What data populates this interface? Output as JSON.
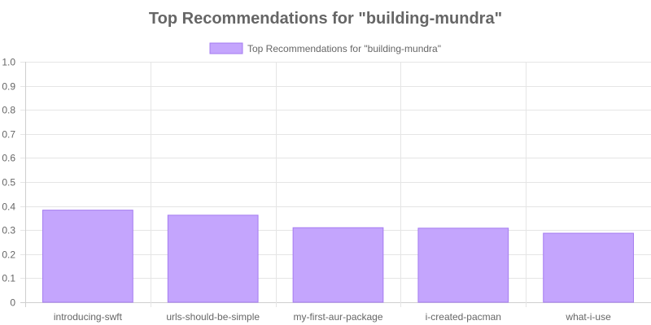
{
  "chart_data": {
    "type": "bar",
    "title": "Top Recommendations for \"building-mundra\"",
    "legend": {
      "position": "top",
      "label": "Top Recommendations for \"building-mundra\""
    },
    "categories": [
      "introducing-swft",
      "urls-should-be-simple",
      "my-first-aur-package",
      "i-created-pacman",
      "what-i-use"
    ],
    "series": [
      {
        "name": "Top Recommendations for \"building-mundra\"",
        "values": [
          0.383,
          0.362,
          0.31,
          0.308,
          0.287
        ]
      }
    ],
    "y_ticks": [
      "0",
      "0.1",
      "0.2",
      "0.3",
      "0.4",
      "0.5",
      "0.6",
      "0.7",
      "0.8",
      "0.9",
      "1.0"
    ],
    "ylim": [
      0,
      1
    ],
    "grid": true,
    "colors": {
      "bar_fill": "#c4a5fd",
      "bar_border": "#a57cf0",
      "text": "#666666",
      "grid": "#e5e5e5"
    }
  }
}
